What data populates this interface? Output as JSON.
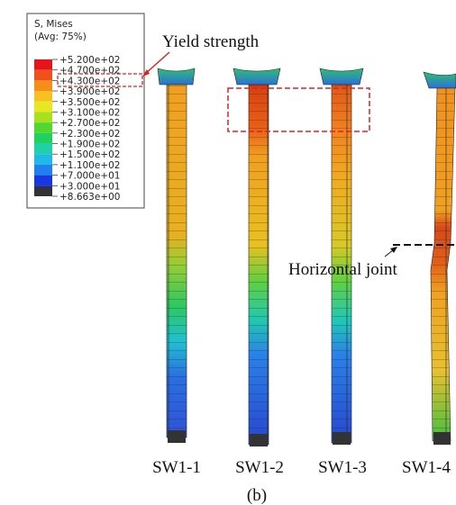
{
  "legend": {
    "title": "S, Mises",
    "subtitle": "(Avg: 75%)",
    "labels": [
      "+5.200e+02",
      "+4.700e+02",
      "+4.300e+02",
      "+3.900e+02",
      "+3.500e+02",
      "+3.100e+02",
      "+2.700e+02",
      "+2.300e+02",
      "+1.900e+02",
      "+1.500e+02",
      "+1.100e+02",
      "+7.000e+01",
      "+3.000e+01",
      "+8.663e+00"
    ]
  },
  "annotations": {
    "yield_strength": "Yield strength",
    "horizontal_joint": "Horizontal joint"
  },
  "specimens": [
    "SW1-1",
    "SW1-2",
    "SW1-3",
    "SW1-4"
  ],
  "caption": "(b)"
}
